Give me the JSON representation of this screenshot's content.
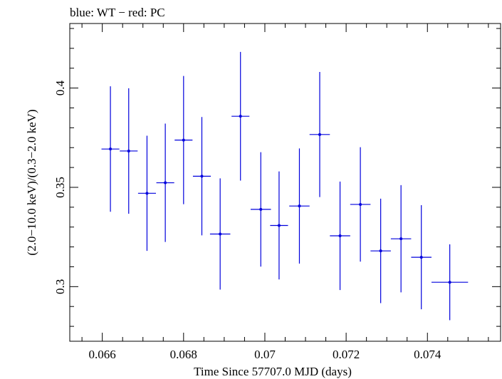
{
  "chart_data": {
    "type": "scatter",
    "title": "blue: WT − red: PC",
    "xlabel": "Time Since 57707.0 MJD (days)",
    "ylabel": "(2.0−10.0 keV)/(0.3−2.0 keV)",
    "xlim": [
      0.0652,
      0.0758
    ],
    "ylim": [
      0.2725,
      0.4325
    ],
    "xticks": [
      {
        "value": 0.066,
        "label": "0.066"
      },
      {
        "value": 0.068,
        "label": "0.068"
      },
      {
        "value": 0.07,
        "label": "0.07"
      },
      {
        "value": 0.072,
        "label": "0.072"
      },
      {
        "value": 0.074,
        "label": "0.074"
      }
    ],
    "yticks": [
      {
        "value": 0.3,
        "label": "0.3"
      },
      {
        "value": 0.35,
        "label": "0.35"
      },
      {
        "value": 0.4,
        "label": "0.4"
      }
    ],
    "grid": false,
    "series": [
      {
        "color": "#0000dd",
        "points": [
          {
            "x": 0.0662,
            "y": 0.3693,
            "xerr": 0.00022,
            "yerr": 0.0316
          },
          {
            "x": 0.06665,
            "y": 0.3683,
            "xerr": 0.00022,
            "yerr": 0.0316
          },
          {
            "x": 0.0671,
            "y": 0.347,
            "xerr": 0.00022,
            "yerr": 0.029
          },
          {
            "x": 0.06755,
            "y": 0.3523,
            "xerr": 0.00022,
            "yerr": 0.0298
          },
          {
            "x": 0.068,
            "y": 0.3738,
            "xerr": 0.00022,
            "yerr": 0.0323
          },
          {
            "x": 0.06845,
            "y": 0.3556,
            "xerr": 0.00022,
            "yerr": 0.0298
          },
          {
            "x": 0.0689,
            "y": 0.3265,
            "xerr": 0.00025,
            "yerr": 0.028
          },
          {
            "x": 0.0694,
            "y": 0.3858,
            "xerr": 0.00022,
            "yerr": 0.0324
          },
          {
            "x": 0.0699,
            "y": 0.3389,
            "xerr": 0.00025,
            "yerr": 0.0288
          },
          {
            "x": 0.07035,
            "y": 0.3308,
            "xerr": 0.00022,
            "yerr": 0.0272
          },
          {
            "x": 0.07085,
            "y": 0.3406,
            "xerr": 0.00025,
            "yerr": 0.029
          },
          {
            "x": 0.07135,
            "y": 0.3766,
            "xerr": 0.00025,
            "yerr": 0.0315
          },
          {
            "x": 0.07185,
            "y": 0.3256,
            "xerr": 0.00025,
            "yerr": 0.0273
          },
          {
            "x": 0.07235,
            "y": 0.3414,
            "xerr": 0.00025,
            "yerr": 0.0288
          },
          {
            "x": 0.07285,
            "y": 0.318,
            "xerr": 0.00025,
            "yerr": 0.0263
          },
          {
            "x": 0.07335,
            "y": 0.3241,
            "xerr": 0.00025,
            "yerr": 0.027
          },
          {
            "x": 0.07385,
            "y": 0.3148,
            "xerr": 0.00025,
            "yerr": 0.0262
          },
          {
            "x": 0.07455,
            "y": 0.3022,
            "xerr": 0.00045,
            "yerr": 0.0191
          }
        ]
      }
    ]
  }
}
